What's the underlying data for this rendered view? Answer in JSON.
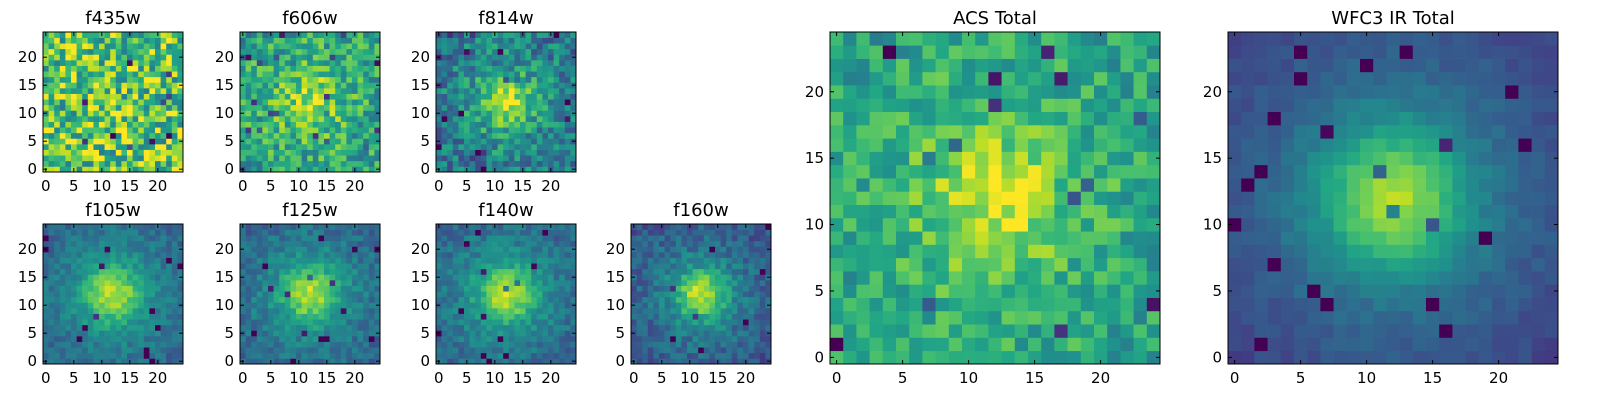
{
  "colormap": "viridis",
  "chart_data": [
    {
      "type": "heatmap",
      "panel_id": "f435w",
      "title": "f435w",
      "size": 25,
      "xticks": [
        "0",
        "5",
        "10",
        "15",
        "20"
      ],
      "yticks": [
        "0",
        "5",
        "10",
        "15",
        "20"
      ],
      "xlim": [
        0,
        25
      ],
      "ylim": [
        0,
        25
      ],
      "peak": 0.0,
      "noise": 0.32,
      "base": 0.74,
      "core_sigma": 4,
      "halo_sigma": 8,
      "grid": false
    },
    {
      "type": "heatmap",
      "panel_id": "f606w",
      "title": "f606w",
      "size": 25,
      "xticks": [
        "0",
        "5",
        "10",
        "15",
        "20"
      ],
      "yticks": [
        "0",
        "5",
        "10",
        "15",
        "20"
      ],
      "xlim": [
        0,
        25
      ],
      "ylim": [
        0,
        25
      ],
      "peak": 0.35,
      "noise": 0.22,
      "base": 0.56,
      "core_sigma": 3.2,
      "halo_sigma": 7,
      "grid": false
    },
    {
      "type": "heatmap",
      "panel_id": "f814w",
      "title": "f814w",
      "size": 25,
      "xticks": [
        "0",
        "5",
        "10",
        "15",
        "20"
      ],
      "yticks": [
        "0",
        "5",
        "10",
        "15",
        "20"
      ],
      "xlim": [
        0,
        25
      ],
      "ylim": [
        0,
        25
      ],
      "peak": 0.55,
      "noise": 0.2,
      "base": 0.38,
      "core_sigma": 2.8,
      "halo_sigma": 7,
      "grid": false
    },
    {
      "type": "heatmap",
      "panel_id": "f105w",
      "title": "f105w",
      "size": 25,
      "xticks": [
        "0",
        "5",
        "10",
        "15",
        "20"
      ],
      "yticks": [
        "0",
        "5",
        "10",
        "15",
        "20"
      ],
      "xlim": [
        0,
        25
      ],
      "ylim": [
        0,
        25
      ],
      "peak": 0.62,
      "noise": 0.09,
      "base": 0.3,
      "core_sigma": 3.2,
      "halo_sigma": 8,
      "grid": false
    },
    {
      "type": "heatmap",
      "panel_id": "f125w",
      "title": "f125w",
      "size": 25,
      "xticks": [
        "0",
        "5",
        "10",
        "15",
        "20"
      ],
      "yticks": [
        "0",
        "5",
        "10",
        "15",
        "20"
      ],
      "xlim": [
        0,
        25
      ],
      "ylim": [
        0,
        25
      ],
      "peak": 0.6,
      "noise": 0.1,
      "base": 0.3,
      "core_sigma": 3.2,
      "halo_sigma": 8,
      "grid": false
    },
    {
      "type": "heatmap",
      "panel_id": "f140w",
      "title": "f140w",
      "size": 25,
      "xticks": [
        "0",
        "5",
        "10",
        "15",
        "20"
      ],
      "yticks": [
        "0",
        "5",
        "10",
        "15",
        "20"
      ],
      "xlim": [
        0,
        25
      ],
      "ylim": [
        0,
        25
      ],
      "peak": 0.62,
      "noise": 0.1,
      "base": 0.3,
      "core_sigma": 3.2,
      "halo_sigma": 8,
      "grid": false
    },
    {
      "type": "heatmap",
      "panel_id": "f160w",
      "title": "f160w",
      "size": 25,
      "xticks": [
        "0",
        "5",
        "10",
        "15",
        "20"
      ],
      "yticks": [
        "0",
        "5",
        "10",
        "15",
        "20"
      ],
      "xlim": [
        0,
        25
      ],
      "ylim": [
        0,
        25
      ],
      "peak": 0.66,
      "noise": 0.11,
      "base": 0.24,
      "core_sigma": 3.0,
      "halo_sigma": 7.5,
      "grid": false
    },
    {
      "type": "heatmap",
      "panel_id": "acs_total",
      "title": "ACS Total",
      "size": 25,
      "xticks": [
        "0",
        "5",
        "10",
        "15",
        "20"
      ],
      "yticks": [
        "0",
        "5",
        "10",
        "15",
        "20"
      ],
      "xlim": [
        0,
        25
      ],
      "ylim": [
        0,
        25
      ],
      "peak": 0.4,
      "noise": 0.16,
      "base": 0.55,
      "core_sigma": 3.4,
      "halo_sigma": 8,
      "grid": false
    },
    {
      "type": "heatmap",
      "panel_id": "wfc3_total",
      "title": "WFC3 IR Total",
      "size": 25,
      "xticks": [
        "0",
        "5",
        "10",
        "15",
        "20"
      ],
      "yticks": [
        "0",
        "5",
        "10",
        "15",
        "20"
      ],
      "xlim": [
        0,
        25
      ],
      "ylim": [
        0,
        25
      ],
      "peak": 0.72,
      "noise": 0.04,
      "base": 0.16,
      "core_sigma": 3.6,
      "halo_sigma": 9,
      "grid": false
    }
  ]
}
